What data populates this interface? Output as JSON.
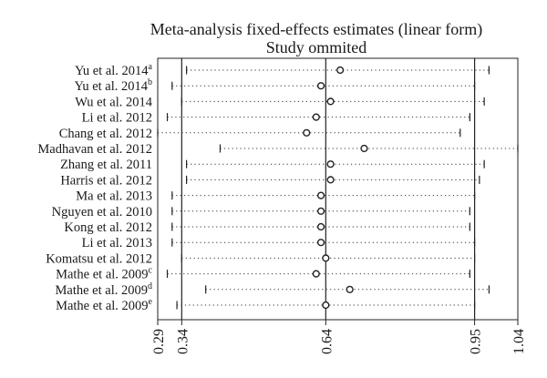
{
  "chart_data": {
    "type": "forest",
    "title": "Meta-analysis fixed-effects estimates (linear form)",
    "subtitle": "Study ommited",
    "x_ticks": [
      0.29,
      0.34,
      0.64,
      0.95,
      1.04
    ],
    "xlim": [
      0.29,
      1.04
    ],
    "reference_lines": [
      0.34,
      0.64,
      0.95
    ],
    "studies": [
      {
        "label": "Yu et al. 2014",
        "sup": "a",
        "lower": 0.35,
        "estimate": 0.67,
        "upper": 0.98
      },
      {
        "label": "Yu et al. 2014",
        "sup": "b",
        "lower": 0.32,
        "estimate": 0.63,
        "upper": 0.95
      },
      {
        "label": "Wu et al. 2014",
        "sup": "",
        "lower": 0.34,
        "estimate": 0.65,
        "upper": 0.97
      },
      {
        "label": "Li et al. 2012",
        "sup": "",
        "lower": 0.31,
        "estimate": 0.62,
        "upper": 0.94
      },
      {
        "label": "Chang et al. 2012",
        "sup": "",
        "lower": 0.29,
        "estimate": 0.6,
        "upper": 0.92
      },
      {
        "label": "Madhavan et al. 2012",
        "sup": "",
        "lower": 0.42,
        "estimate": 0.72,
        "upper": 1.04
      },
      {
        "label": "Zhang et al. 2011",
        "sup": "",
        "lower": 0.35,
        "estimate": 0.65,
        "upper": 0.97
      },
      {
        "label": "Harris et al. 2012",
        "sup": "",
        "lower": 0.35,
        "estimate": 0.65,
        "upper": 0.96
      },
      {
        "label": "Ma et al. 2013",
        "sup": "",
        "lower": 0.32,
        "estimate": 0.63,
        "upper": 0.95
      },
      {
        "label": "Nguyen et al. 2010",
        "sup": "",
        "lower": 0.32,
        "estimate": 0.63,
        "upper": 0.94
      },
      {
        "label": "Kong et al. 2012",
        "sup": "",
        "lower": 0.32,
        "estimate": 0.63,
        "upper": 0.94
      },
      {
        "label": "Li et al. 2013",
        "sup": "",
        "lower": 0.32,
        "estimate": 0.63,
        "upper": 0.95
      },
      {
        "label": "Komatsu et al. 2012",
        "sup": "",
        "lower": 0.34,
        "estimate": 0.64,
        "upper": 0.95
      },
      {
        "label": "Mathe et al. 2009",
        "sup": "c",
        "lower": 0.31,
        "estimate": 0.62,
        "upper": 0.94
      },
      {
        "label": "Mathe et al. 2009",
        "sup": "d",
        "lower": 0.39,
        "estimate": 0.69,
        "upper": 0.98
      },
      {
        "label": "Mathe et al. 2009",
        "sup": "e",
        "lower": 0.33,
        "estimate": 0.64,
        "upper": 0.95
      }
    ]
  }
}
